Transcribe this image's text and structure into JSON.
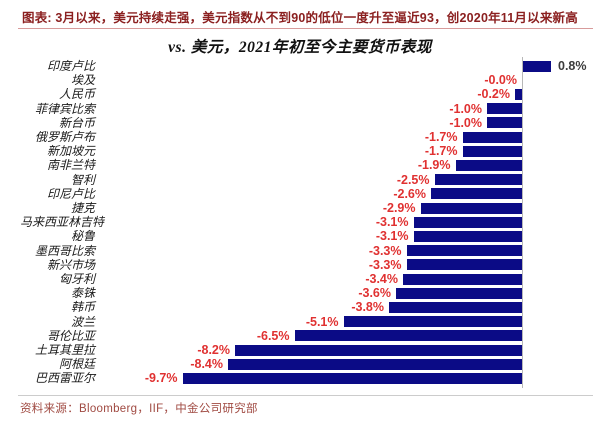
{
  "header": {
    "text": "图表: 3月以来，美元持续走强，美元指数从不到90的低位一度升至逼近93，创2020年11月以来新高"
  },
  "chart_data": {
    "type": "bar",
    "orientation": "horizontal",
    "title": "vs. 美元，2021年初至今主要货币表现",
    "unit": "%",
    "categories": [
      "印度卢比",
      "埃及",
      "人民币",
      "菲律宾比索",
      "新台币",
      "俄罗斯卢布",
      "新加坡元",
      "南非兰特",
      "智利",
      "印尼卢比",
      "捷克",
      "马来西亚林吉特",
      "秘鲁",
      "墨西哥比索",
      "新兴市场",
      "匈牙利",
      "泰铢",
      "韩币",
      "波兰",
      "哥伦比亚",
      "土耳其里拉",
      "阿根廷",
      "巴西雷亚尔"
    ],
    "values": [
      0.8,
      -0.0,
      -0.2,
      -1.0,
      -1.0,
      -1.7,
      -1.7,
      -1.9,
      -2.5,
      -2.6,
      -2.9,
      -3.1,
      -3.1,
      -3.3,
      -3.3,
      -3.4,
      -3.6,
      -3.8,
      -5.1,
      -6.5,
      -8.2,
      -8.4,
      -9.7
    ],
    "labels": [
      "0.8%",
      "-0.0%",
      "-0.2%",
      "-1.0%",
      "-1.0%",
      "-1.7%",
      "-1.7%",
      "-1.9%",
      "-2.5%",
      "-2.6%",
      "-2.9%",
      "-3.1%",
      "-3.1%",
      "-3.3%",
      "-3.3%",
      "-3.4%",
      "-3.6%",
      "-3.8%",
      "-5.1%",
      "-6.5%",
      "-8.2%",
      "-8.4%",
      "-9.7%"
    ],
    "xlim": [
      -10.5,
      1.2
    ],
    "grid": false,
    "legend": false,
    "value_labels_shown": true,
    "zero_axis_line": true
  },
  "footer": {
    "source_text": "资料来源：Bloomberg，IIF，中金公司研究部"
  },
  "colors": {
    "bar": "#0b0b86",
    "negative_value_label": "#e03131",
    "positive_value_label": "#3c3c3c",
    "header_text": "#8b2020",
    "header_underline": "#d89b9b",
    "footer_text": "#a04a42",
    "divider": "#cccccc",
    "axis_line": "#b8b8b8"
  }
}
